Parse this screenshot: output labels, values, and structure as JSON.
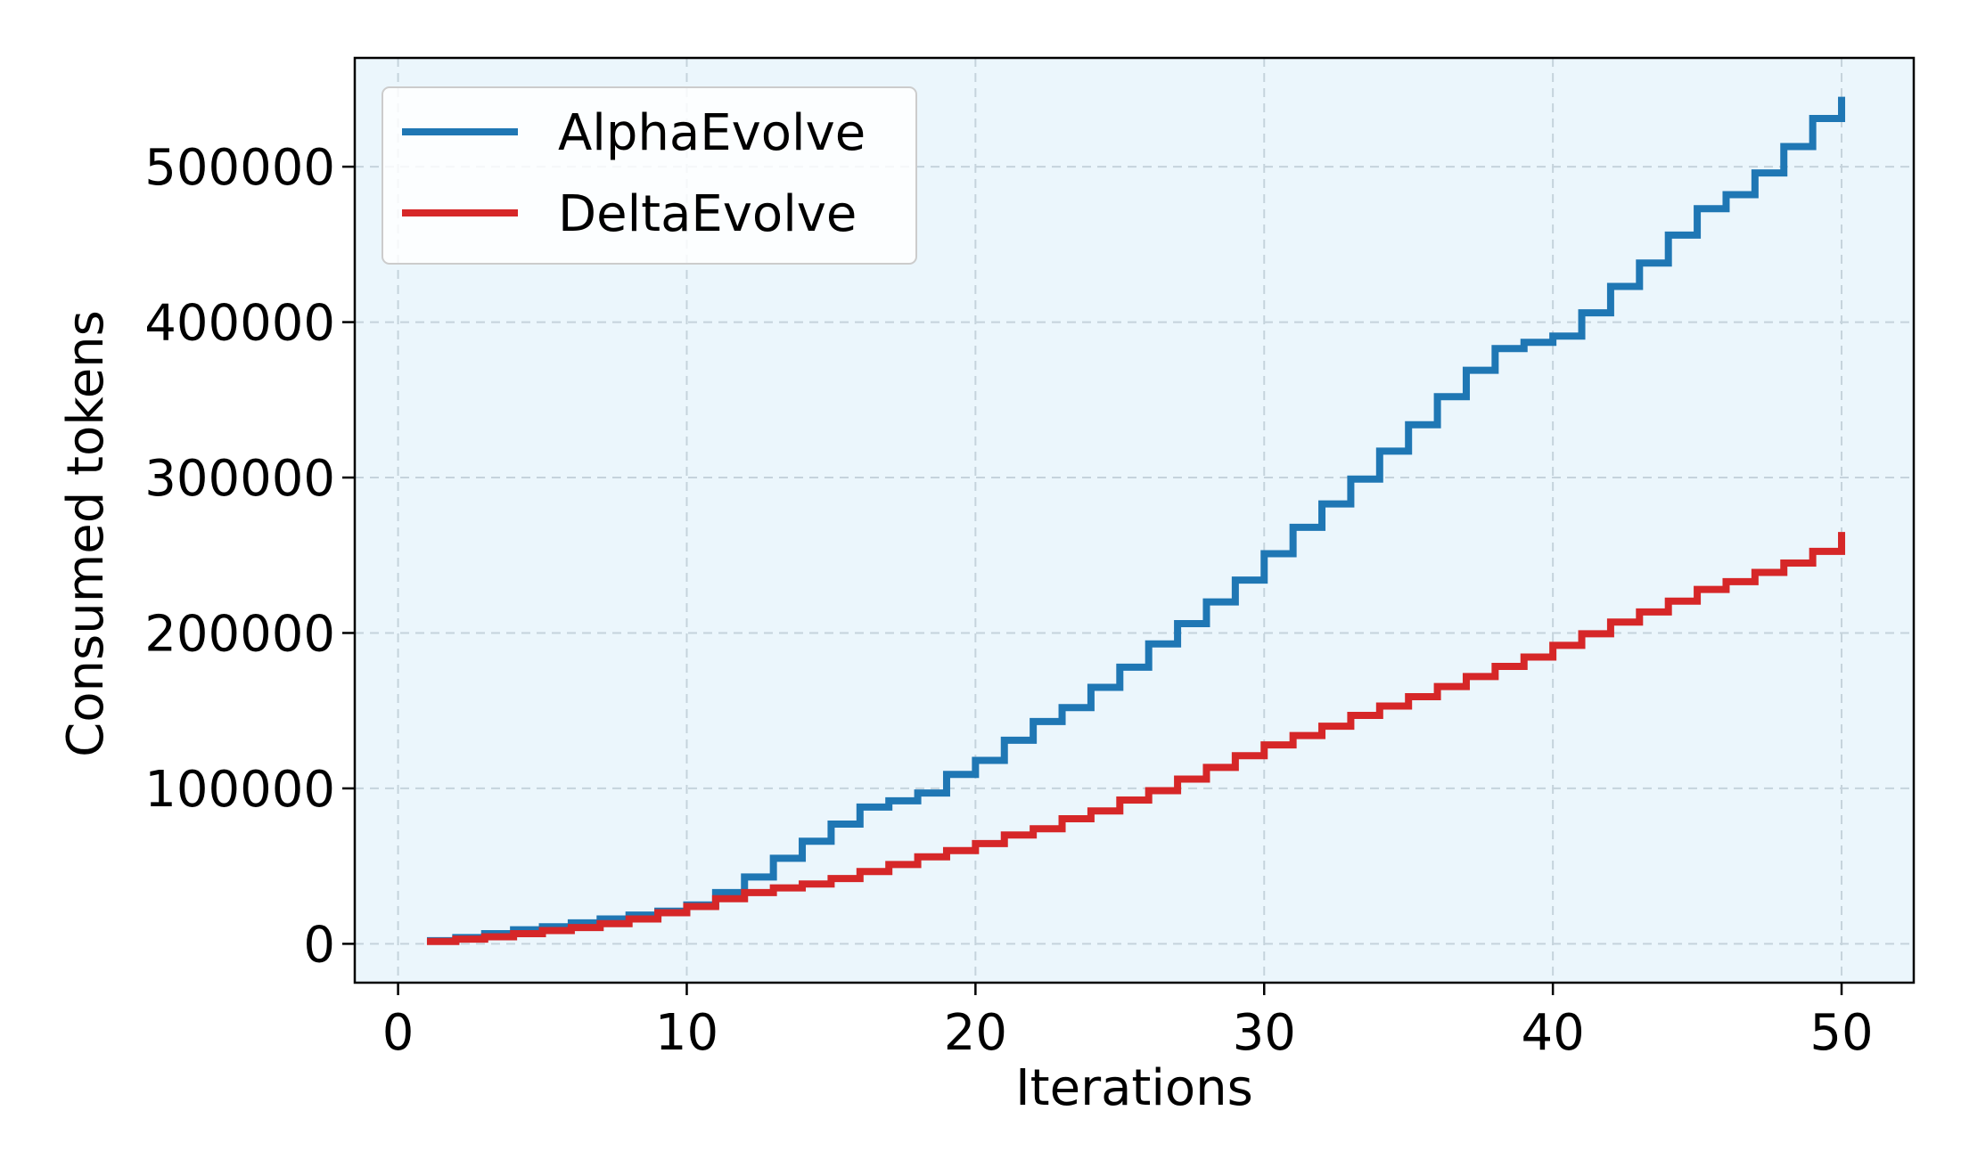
{
  "chart_data": {
    "type": "line",
    "step": true,
    "title": "",
    "xlabel": "Iterations",
    "ylabel": "Consumed tokens",
    "xlim": [
      -1.5,
      52.5
    ],
    "ylim": [
      -25000,
      570000
    ],
    "xticks": [
      0,
      10,
      20,
      30,
      40,
      50
    ],
    "yticks": [
      0,
      100000,
      200000,
      300000,
      400000,
      500000
    ],
    "grid": true,
    "legend_position": "top-left",
    "background_color": "#ebf6fc",
    "x": [
      1,
      2,
      3,
      4,
      5,
      6,
      7,
      8,
      9,
      10,
      11,
      12,
      13,
      14,
      15,
      16,
      17,
      18,
      19,
      20,
      21,
      22,
      23,
      24,
      25,
      26,
      27,
      28,
      29,
      30,
      31,
      32,
      33,
      34,
      35,
      36,
      37,
      38,
      39,
      40,
      41,
      42,
      43,
      44,
      45,
      46,
      47,
      48,
      49,
      50
    ],
    "series": [
      {
        "name": "AlphaEvolve",
        "color": "#1f77b4",
        "values": [
          2000,
          4000,
          6500,
          9000,
          11000,
          13500,
          16000,
          18500,
          21000,
          25000,
          33000,
          43000,
          55000,
          66000,
          77000,
          88000,
          92000,
          97000,
          109000,
          118000,
          131000,
          143000,
          152000,
          165000,
          178000,
          193000,
          206000,
          220000,
          234000,
          251000,
          268000,
          283000,
          299000,
          317000,
          334000,
          352000,
          369000,
          383000,
          387000,
          391000,
          406000,
          423000,
          438000,
          456000,
          473000,
          482000,
          496000,
          513000,
          531000,
          545000
        ]
      },
      {
        "name": "DeltaEvolve",
        "color": "#d62728",
        "values": [
          1500,
          3000,
          4500,
          6500,
          8500,
          10500,
          13000,
          16000,
          20000,
          24000,
          29000,
          33000,
          36000,
          38500,
          42000,
          46500,
          51000,
          56000,
          60000,
          64500,
          70000,
          74000,
          80500,
          85500,
          92500,
          98500,
          106000,
          113500,
          121000,
          128000,
          134000,
          140000,
          147000,
          153000,
          159000,
          165500,
          172000,
          178500,
          184500,
          192000,
          199500,
          207000,
          213500,
          220500,
          228000,
          233000,
          239000,
          245000,
          252500,
          265000
        ]
      }
    ]
  }
}
